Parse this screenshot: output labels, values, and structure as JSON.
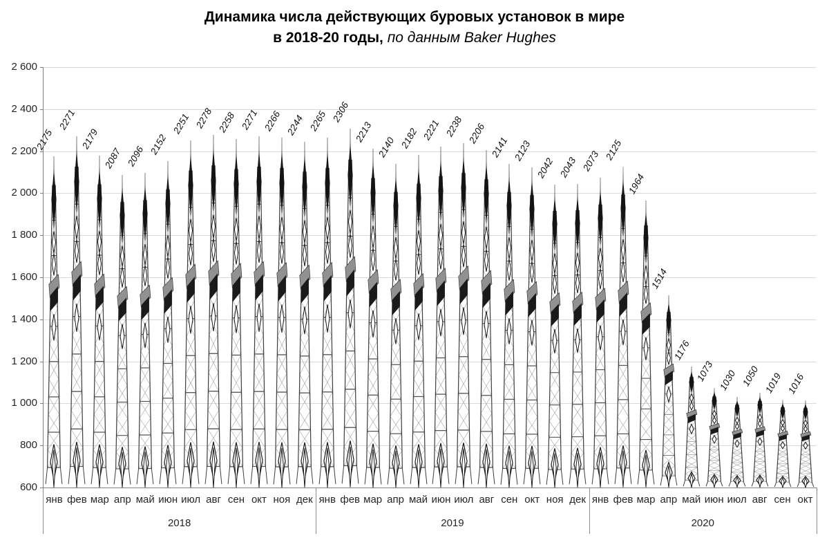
{
  "title": {
    "line1": "Динамика числа действующих буровых установок в мире",
    "line2_bold": "в 2018-20 годы,",
    "line2_italic": " по данным Baker Hughes"
  },
  "chart_data": {
    "type": "bar",
    "pictogram": "oil-derrick",
    "title": "Динамика числа действующих буровых установок в мире в 2018-20 годы, по данным Baker Hughes",
    "xlabel": "",
    "ylabel": "",
    "ylim": [
      600,
      2600
    ],
    "ytick_step": 200,
    "grid": true,
    "legend": false,
    "value_labels": "rotated-italic-above-bar",
    "groups": [
      {
        "year": "2018",
        "categories": [
          "янв",
          "фев",
          "мар",
          "апр",
          "май",
          "июн",
          "июл",
          "авг",
          "сен",
          "окт",
          "ноя",
          "дек"
        ],
        "values": [
          2175,
          2271,
          2179,
          2087,
          2096,
          2152,
          2251,
          2278,
          2258,
          2271,
          2266,
          2244
        ]
      },
      {
        "year": "2019",
        "categories": [
          "янв",
          "фев",
          "мар",
          "апр",
          "май",
          "июн",
          "июл",
          "авг",
          "сен",
          "окт",
          "ноя",
          "дек"
        ],
        "values": [
          2265,
          2306,
          2213,
          2140,
          2182,
          2221,
          2238,
          2206,
          2141,
          2123,
          2042,
          2043
        ]
      },
      {
        "year": "2020",
        "categories": [
          "янв",
          "фев",
          "мар",
          "апр",
          "май",
          "июн",
          "июл",
          "авг",
          "сен",
          "окт"
        ],
        "values": [
          2073,
          2125,
          1964,
          1514,
          1176,
          1073,
          1030,
          1050,
          1019,
          1016
        ]
      }
    ]
  },
  "colors": {
    "background": "#ffffff",
    "gridline": "#d9d9d9",
    "axis": "#7f7f7f",
    "text": "#262626",
    "derrick_dark": "#141414",
    "derrick_lattice": "#9b9b9b",
    "derrick_platform": "#919191"
  }
}
